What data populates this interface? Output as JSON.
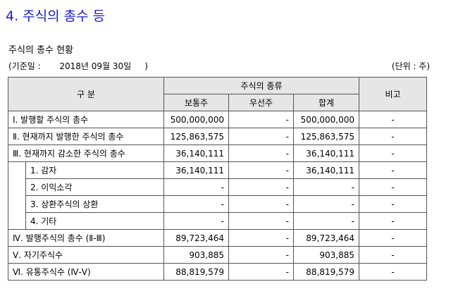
{
  "section_title": "4. 주식의 총수 등",
  "sub_title": "주식의 총수 현황",
  "base_date": "(기준일 :       2018년 09월 30일     )",
  "unit": "(단위 : 주)",
  "headers": {
    "category": "구 분",
    "kind": "주식의 종류",
    "common": "보통주",
    "preferred": "우선주",
    "total": "합계",
    "remark": "비고"
  },
  "rows": [
    {
      "label": "Ⅰ. 발행할 주식의 총수",
      "common": "500,000,000",
      "preferred": "-",
      "total": "500,000,000",
      "remark": "-"
    },
    {
      "label": "Ⅱ. 현재까지 발행한 주식의 총수",
      "common": "125,863,575",
      "preferred": "-",
      "total": "125,863,575",
      "remark": "-"
    },
    {
      "label": "Ⅲ. 현재까지 감소한 주식의 총수",
      "common": "36,140,111",
      "preferred": "-",
      "total": "36,140,111",
      "remark": "-"
    },
    {
      "label": "1. 감자",
      "common": "36,140,111",
      "preferred": "-",
      "total": "36,140,111",
      "remark": "-"
    },
    {
      "label": "2. 이익소각",
      "common": "-",
      "preferred": "-",
      "total": "-",
      "remark": "-"
    },
    {
      "label": "3. 상환주식의 상환",
      "common": "-",
      "preferred": "-",
      "total": "-",
      "remark": "-"
    },
    {
      "label": "4. 기타",
      "common": "-",
      "preferred": "-",
      "total": "-",
      "remark": "-"
    },
    {
      "label": "Ⅳ. 발행주식의 총수 (Ⅱ-Ⅲ)",
      "common": "89,723,464",
      "preferred": "-",
      "total": "89,723,464",
      "remark": "-"
    },
    {
      "label": "Ⅴ. 자기주식수",
      "common": "903,885",
      "preferred": "-",
      "total": "903,885",
      "remark": "-"
    },
    {
      "label": "Ⅵ. 유통주식수 (Ⅳ-Ⅴ)",
      "common": "88,819,579",
      "preferred": "-",
      "total": "88,819,579",
      "remark": "-"
    }
  ]
}
